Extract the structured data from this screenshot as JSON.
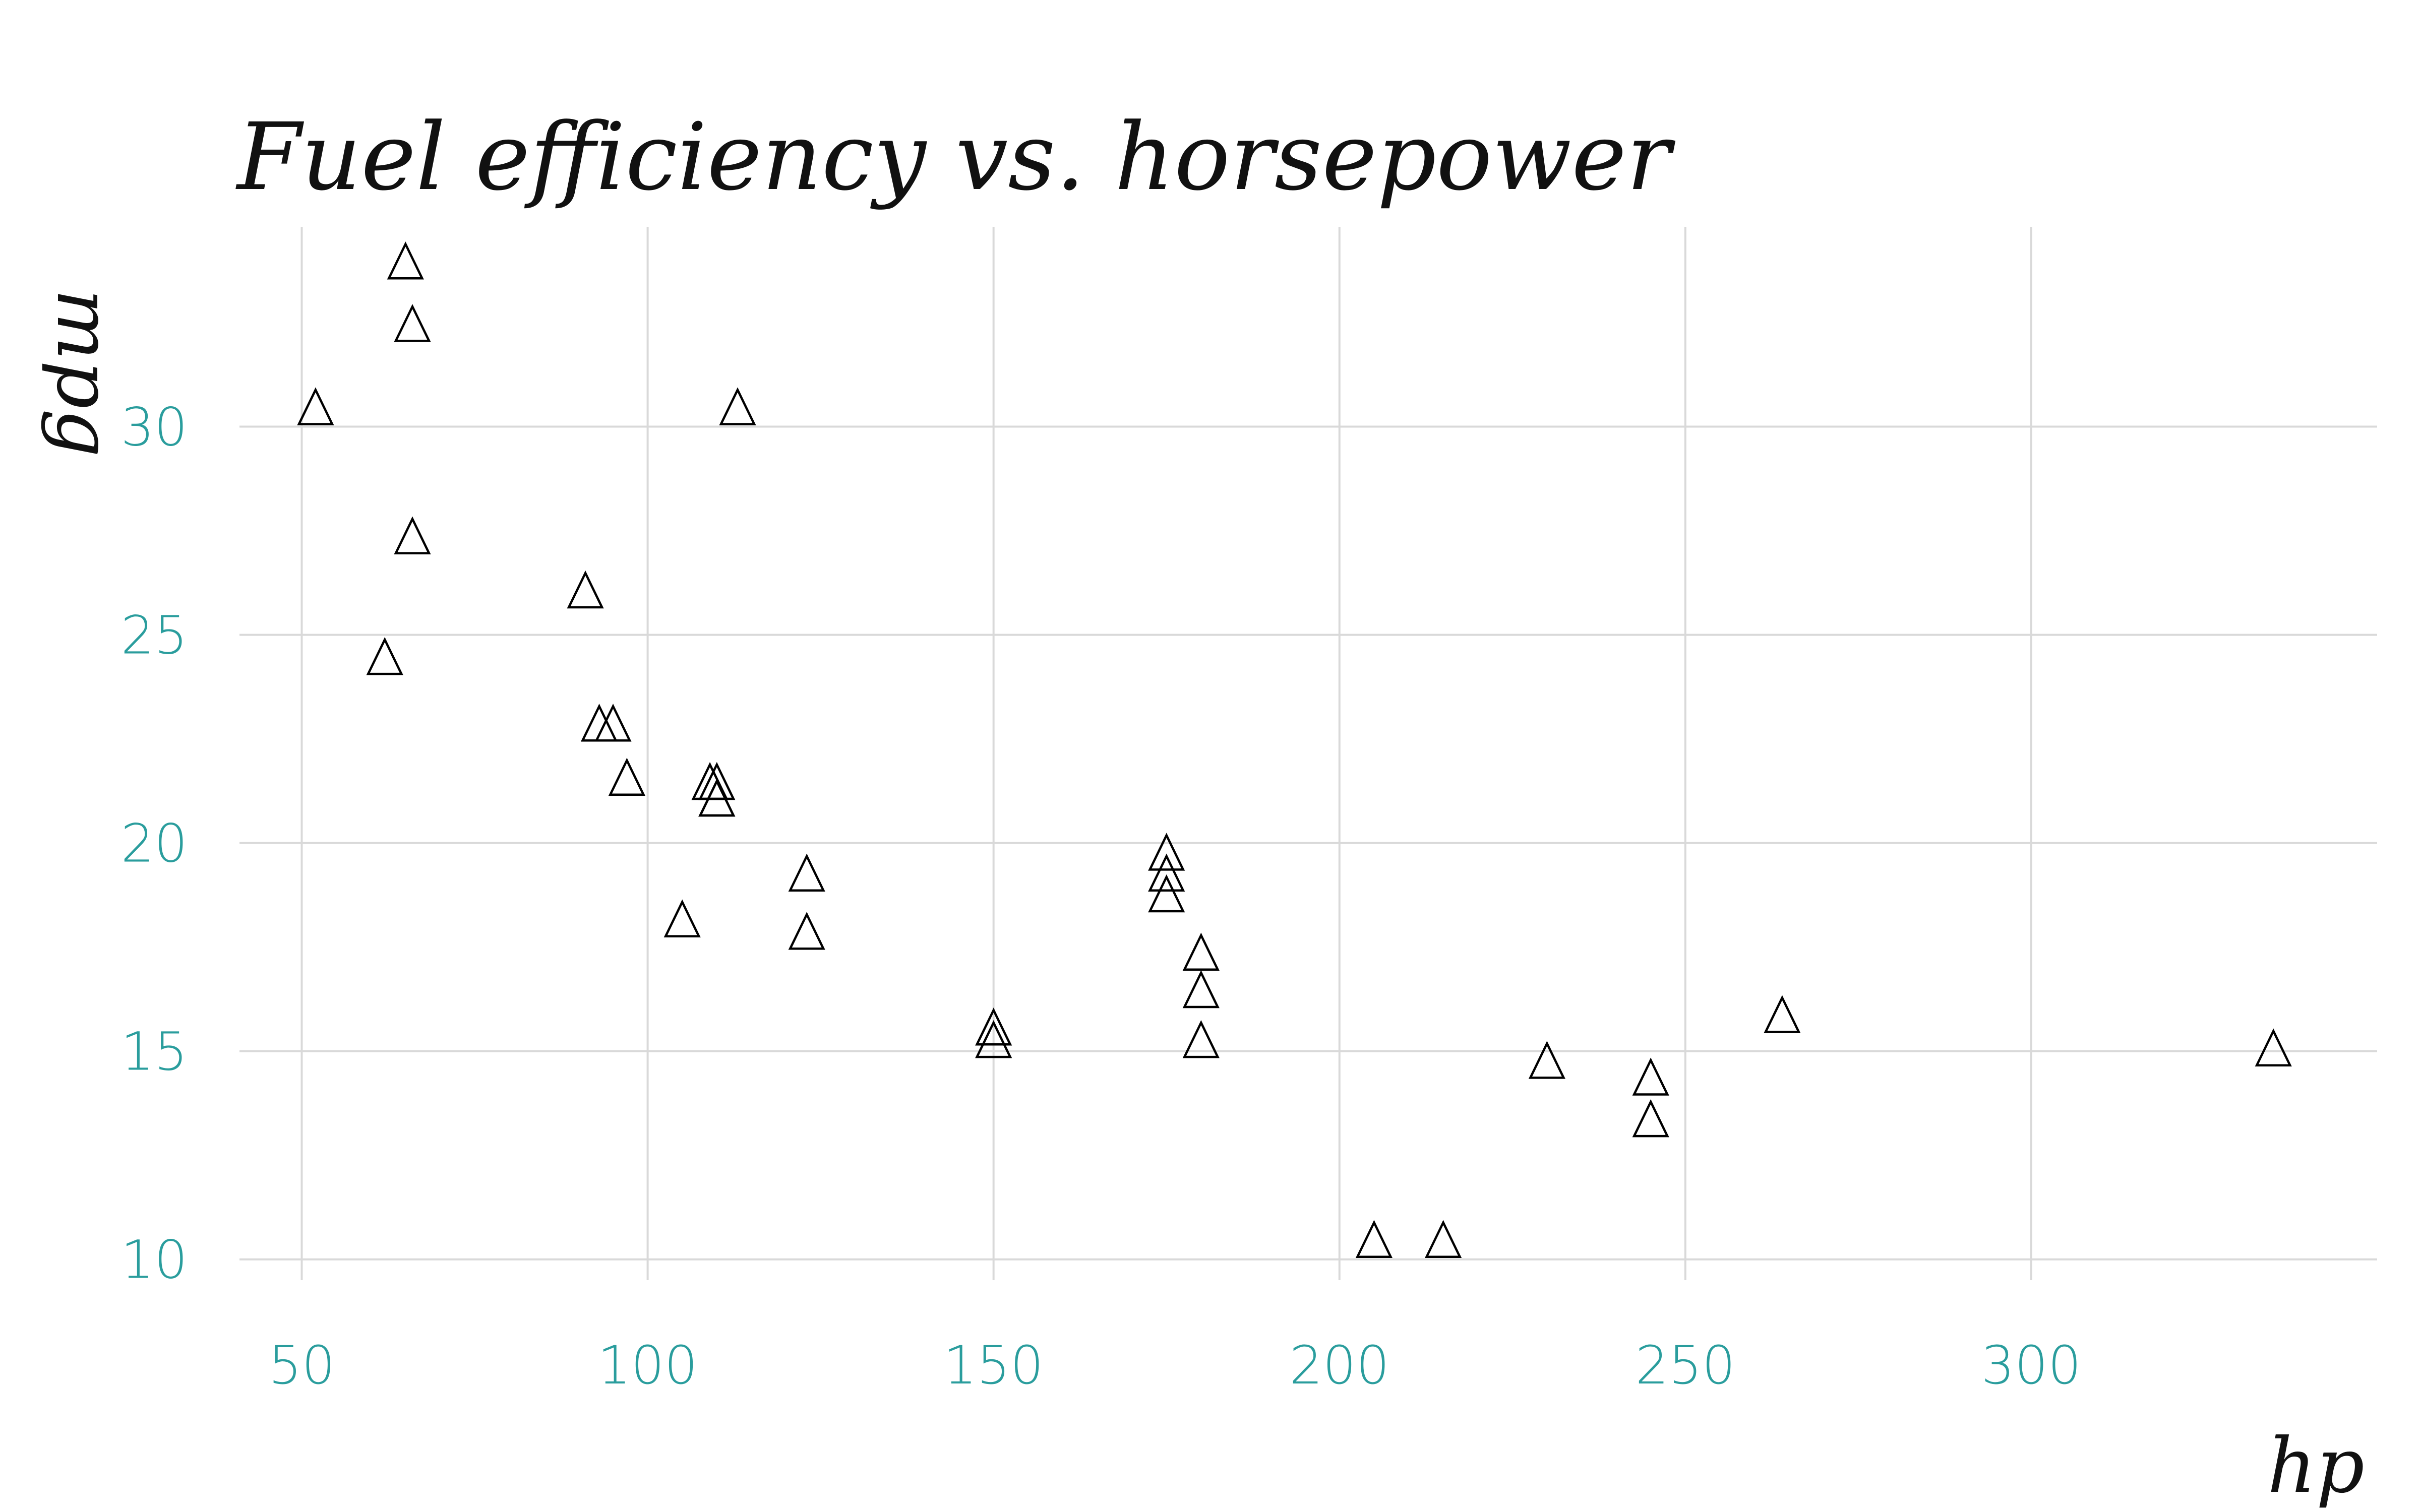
{
  "chart_data": {
    "type": "scatter",
    "title": "Fuel efficiency vs. horsepower",
    "xlabel": "hp",
    "ylabel": "mpg",
    "xlim": [
      41,
      350
    ],
    "ylim": [
      9.5,
      34.8
    ],
    "x_ticks": [
      50,
      100,
      150,
      200,
      250,
      300
    ],
    "y_ticks": [
      10,
      15,
      20,
      25,
      30
    ],
    "grid": true,
    "marker": "open-triangle",
    "colors": {
      "tick_label": "#2a9d9d",
      "grid": "#d9d9d9",
      "marker": "#000000",
      "text": "#111111"
    },
    "points": [
      {
        "x": 110,
        "y": 21.0
      },
      {
        "x": 110,
        "y": 21.0
      },
      {
        "x": 93,
        "y": 22.8
      },
      {
        "x": 110,
        "y": 21.4
      },
      {
        "x": 175,
        "y": 18.7
      },
      {
        "x": 105,
        "y": 18.1
      },
      {
        "x": 245,
        "y": 14.3
      },
      {
        "x": 62,
        "y": 24.4
      },
      {
        "x": 95,
        "y": 22.8
      },
      {
        "x": 123,
        "y": 19.2
      },
      {
        "x": 123,
        "y": 17.8
      },
      {
        "x": 180,
        "y": 16.4
      },
      {
        "x": 180,
        "y": 17.3
      },
      {
        "x": 180,
        "y": 15.2
      },
      {
        "x": 205,
        "y": 10.4
      },
      {
        "x": 215,
        "y": 10.4
      },
      {
        "x": 230,
        "y": 14.7
      },
      {
        "x": 66,
        "y": 32.4
      },
      {
        "x": 52,
        "y": 30.4
      },
      {
        "x": 65,
        "y": 33.9
      },
      {
        "x": 97,
        "y": 21.5
      },
      {
        "x": 150,
        "y": 15.5
      },
      {
        "x": 150,
        "y": 15.2
      },
      {
        "x": 245,
        "y": 13.3
      },
      {
        "x": 175,
        "y": 19.2
      },
      {
        "x": 66,
        "y": 27.3
      },
      {
        "x": 91,
        "y": 26.0
      },
      {
        "x": 113,
        "y": 30.4
      },
      {
        "x": 264,
        "y": 15.8
      },
      {
        "x": 175,
        "y": 19.7
      },
      {
        "x": 335,
        "y": 15.0
      },
      {
        "x": 109,
        "y": 21.4
      }
    ]
  }
}
